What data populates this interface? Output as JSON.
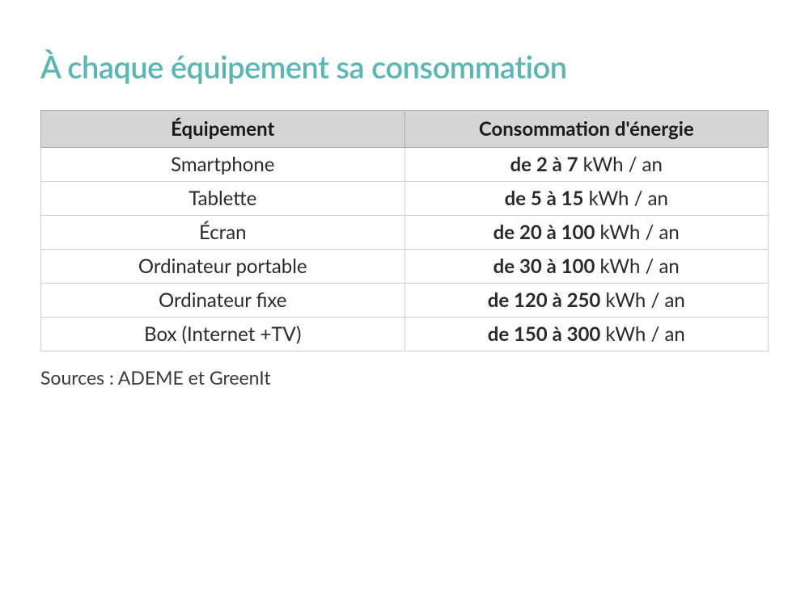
{
  "title": "À chaque équipement sa consommation",
  "table": {
    "type": "table",
    "columns": [
      {
        "header": "Équipement",
        "width_pct": 50,
        "align": "center"
      },
      {
        "header": "Consommation d'énergie",
        "width_pct": 50,
        "align": "center"
      }
    ],
    "rows": [
      {
        "equip": "Smartphone",
        "range": "de 2 à 7",
        "unit": "kWh / an"
      },
      {
        "equip": "Tablette",
        "range": "de 5 à 15",
        "unit": "kWh / an"
      },
      {
        "equip": "Écran",
        "range": "de 20 à 100",
        "unit": "kWh / an"
      },
      {
        "equip": "Ordinateur portable",
        "range": "de 30 à 100",
        "unit": "kWh / an"
      },
      {
        "equip": "Ordinateur fixe",
        "range": "de 120 à 250",
        "unit": "kWh / an"
      },
      {
        "equip": "Box (Internet +TV)",
        "range": "de 150 à 300",
        "unit": "kWh / an"
      }
    ],
    "styling": {
      "header_bg": "#d5d5d5",
      "header_border": "#a8a8a8",
      "cell_border": "#cfcfcf",
      "cell_bg": "#ffffff",
      "text_color": "#2a2a2a",
      "header_font_weight": 700,
      "range_font_weight": 700,
      "unit_font_weight": 400,
      "font_size_pt": 18
    }
  },
  "source": "Sources : ADEME et GreenIt",
  "colors": {
    "title": "#5bb5b5",
    "background": "#ffffff",
    "text": "#2a2a2a"
  },
  "typography": {
    "title_fontsize_pt": 29,
    "title_font_weight": 600,
    "body_fontsize_pt": 18,
    "source_fontsize_pt": 17,
    "font_family": "Segoe UI / Lato / sans-serif"
  }
}
